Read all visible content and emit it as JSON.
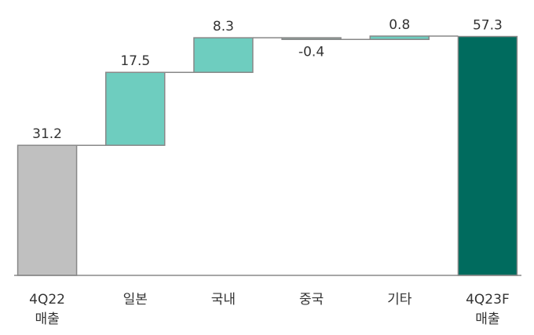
{
  "chart_data": {
    "type": "waterfall",
    "categories": [
      [
        "4Q22",
        "매출"
      ],
      [
        "일본"
      ],
      [
        "국내"
      ],
      [
        "중국"
      ],
      [
        "기타"
      ],
      [
        "4Q23F",
        "매출"
      ]
    ],
    "values": [
      31.2,
      17.5,
      8.3,
      -0.4,
      0.8,
      57.3
    ],
    "is_total": [
      true,
      false,
      false,
      false,
      false,
      true
    ],
    "colors": [
      "#c0c0c0",
      "#6ecdbf",
      "#6ecdbf",
      "#8fa8a3",
      "#6ecdbf",
      "#006b5e"
    ]
  }
}
